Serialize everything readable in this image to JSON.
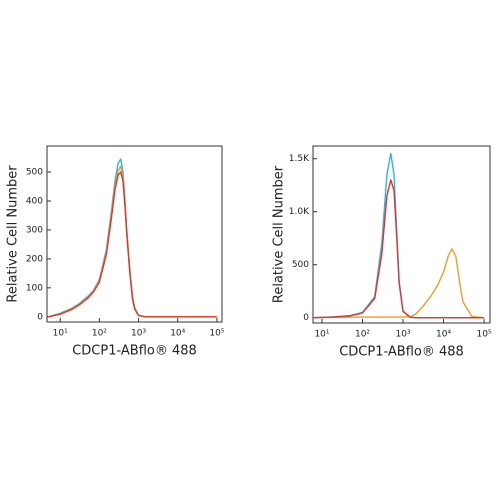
{
  "chart_data": [
    {
      "type": "line",
      "xscale": "log",
      "xlabel": "CDCP1-ABflo® 488",
      "ylabel": "Relative Cell Number",
      "xlim": [
        4.6,
        135000
      ],
      "ylim": [
        -18,
        590
      ],
      "xticks": [
        {
          "value": 10,
          "label": "10¹"
        },
        {
          "value": 100,
          "label": "10²"
        },
        {
          "value": 1000,
          "label": "10³"
        },
        {
          "value": 10000,
          "label": "10⁴"
        },
        {
          "value": 100000,
          "label": "10⁵"
        }
      ],
      "yticks": [
        0,
        100,
        200,
        300,
        400,
        500
      ],
      "x": [
        5,
        10,
        20,
        30,
        50,
        70,
        100,
        150,
        200,
        250,
        300,
        350,
        400,
        450,
        500,
        600,
        700,
        800,
        1000,
        1500,
        100000
      ],
      "series": [
        {
          "color": "#2bb7e6",
          "values": [
            0,
            12,
            30,
            45,
            70,
            90,
            130,
            230,
            360,
            470,
            530,
            545,
            500,
            400,
            300,
            160,
            70,
            30,
            5,
            0,
            0
          ]
        },
        {
          "color": "#f39a2b",
          "values": [
            0,
            10,
            28,
            42,
            66,
            88,
            125,
            220,
            345,
            450,
            505,
            520,
            480,
            390,
            290,
            150,
            65,
            28,
            4,
            0,
            0
          ]
        },
        {
          "color": "#e0352b",
          "values": [
            0,
            9,
            26,
            40,
            64,
            85,
            120,
            215,
            335,
            440,
            490,
            500,
            470,
            380,
            285,
            150,
            62,
            26,
            4,
            0,
            0
          ]
        }
      ]
    },
    {
      "type": "line",
      "xscale": "log",
      "xlabel": "CDCP1-ABflo® 488",
      "ylabel": "Relative Cell Number",
      "xlim": [
        6,
        140000
      ],
      "ylim": [
        -50,
        1620
      ],
      "xticks": [
        {
          "value": 10,
          "label": "10¹"
        },
        {
          "value": 100,
          "label": "10²"
        },
        {
          "value": 1000,
          "label": "10³"
        },
        {
          "value": 10000,
          "label": "10⁴"
        },
        {
          "value": 100000,
          "label": "10⁵"
        }
      ],
      "yticks": [
        0,
        500,
        {
          "value": 1000,
          "label": "1.0K"
        },
        {
          "value": 1500,
          "label": "1.5K"
        }
      ],
      "x": [
        6,
        10,
        20,
        50,
        100,
        200,
        300,
        400,
        500,
        600,
        700,
        800,
        1000,
        1500,
        2000,
        3000,
        5000,
        7000,
        10000,
        13000,
        16000,
        20000,
        25000,
        30000,
        50000,
        100000
      ],
      "series": [
        {
          "color": "#f39a2b",
          "values": [
            0,
            2,
            4,
            5,
            6,
            6,
            6,
            6,
            6,
            6,
            6,
            6,
            6,
            10,
            30,
            100,
            210,
            300,
            430,
            580,
            650,
            580,
            330,
            150,
            10,
            0
          ]
        },
        {
          "color": "#2bb7e6",
          "values": [
            0,
            3,
            8,
            20,
            50,
            200,
            700,
            1350,
            1550,
            1350,
            800,
            350,
            60,
            5,
            0,
            0,
            0,
            0,
            0,
            0,
            0,
            0,
            0,
            0,
            0,
            0
          ]
        },
        {
          "color": "#e0352b",
          "values": [
            0,
            3,
            7,
            18,
            45,
            180,
            600,
            1150,
            1300,
            1200,
            750,
            330,
            60,
            5,
            0,
            0,
            0,
            0,
            0,
            0,
            0,
            0,
            0,
            0,
            0,
            0
          ]
        }
      ]
    }
  ]
}
